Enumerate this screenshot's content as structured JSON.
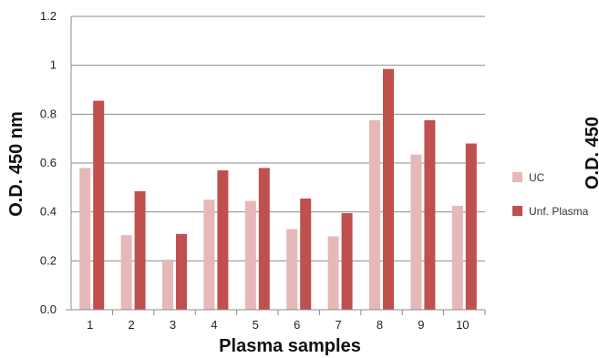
{
  "chart_data": {
    "type": "bar",
    "categories": [
      "1",
      "2",
      "3",
      "4",
      "5",
      "6",
      "7",
      "8",
      "9",
      "10"
    ],
    "series": [
      {
        "name": "UC",
        "color": "#e6b8b7",
        "values": [
          0.58,
          0.305,
          0.205,
          0.45,
          0.445,
          0.33,
          0.3,
          0.775,
          0.635,
          0.425
        ]
      },
      {
        "name": "Unf. Plasma",
        "color": "#c0504d",
        "values": [
          0.855,
          0.485,
          0.31,
          0.57,
          0.58,
          0.455,
          0.395,
          0.985,
          0.775,
          0.68
        ]
      }
    ],
    "title": "",
    "xlabel": "Plasma samples",
    "ylabel": "O.D. 450 nm",
    "ylim": [
      0,
      1.2
    ],
    "yticks": [
      "0.0",
      "0.2",
      "0.4",
      "0.6",
      "0.8",
      "1",
      "1.2"
    ],
    "grid": true,
    "legend": "right",
    "clipped_text": "O.D. 450"
  }
}
